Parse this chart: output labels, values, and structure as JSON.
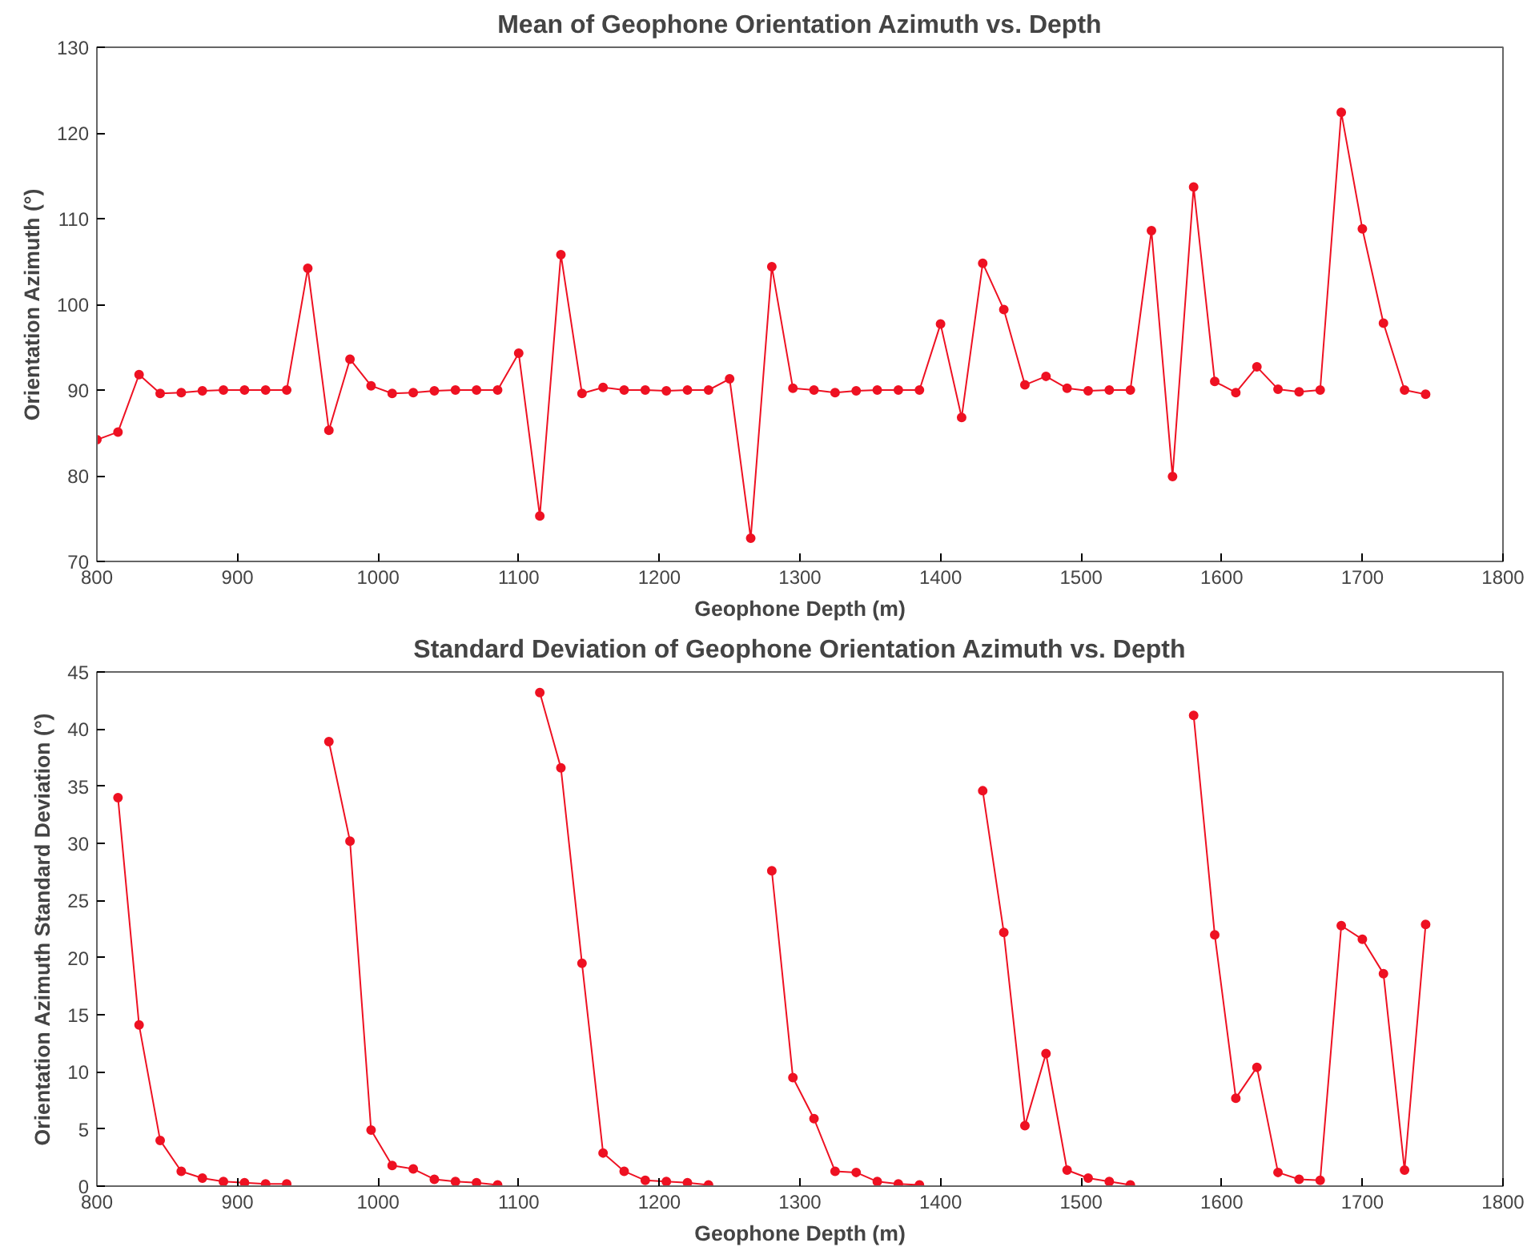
{
  "chart_data": [
    {
      "type": "line",
      "title": "Mean of Geophone Orientation Azimuth vs. Depth",
      "xlabel": "Geophone Depth (m)",
      "ylabel": "Orientation Azimuth (°)",
      "x": [
        800,
        815,
        830,
        845,
        860,
        875,
        890,
        905,
        920,
        935,
        950,
        965,
        980,
        995,
        1010,
        1025,
        1040,
        1055,
        1070,
        1085,
        1100,
        1115,
        1130,
        1145,
        1160,
        1175,
        1190,
        1205,
        1220,
        1235,
        1250,
        1265,
        1280,
        1295,
        1310,
        1325,
        1340,
        1355,
        1370,
        1385,
        1400,
        1415,
        1430,
        1445,
        1460,
        1475,
        1490,
        1505,
        1520,
        1535,
        1550,
        1565,
        1580,
        1595,
        1610,
        1625,
        1640,
        1655,
        1670,
        1685,
        1700,
        1715,
        1730,
        1745
      ],
      "series": [
        {
          "color": "#ee1122",
          "values": [
            84.2,
            85.1,
            91.8,
            89.6,
            89.7,
            89.9,
            90,
            90,
            90,
            90,
            104.2,
            85.3,
            93.6,
            90.5,
            89.6,
            89.7,
            89.9,
            90,
            90,
            90,
            94.3,
            75.3,
            105.8,
            89.6,
            90.3,
            90,
            90,
            89.9,
            90,
            90,
            91.3,
            72.7,
            104.4,
            90.2,
            90,
            89.7,
            89.9,
            90,
            90,
            90,
            97.7,
            86.8,
            104.8,
            99.4,
            90.6,
            91.6,
            90.2,
            89.9,
            90,
            90,
            108.6,
            79.9,
            113.7,
            91,
            89.7,
            92.7,
            90.1,
            89.8,
            90,
            122.4,
            108.8,
            97.8,
            90,
            89.5
          ]
        }
      ],
      "xlim": [
        800,
        1800
      ],
      "xticks": [
        800,
        900,
        1000,
        1100,
        1200,
        1300,
        1400,
        1500,
        1600,
        1700,
        1800
      ],
      "ylim": [
        70,
        130
      ],
      "yticks": [
        70,
        80,
        90,
        100,
        110,
        120,
        130
      ],
      "grid": false,
      "marker": "circle",
      "line_style": "solid"
    },
    {
      "type": "line",
      "title": "Standard Deviation of Geophone Orientation Azimuth vs. Depth",
      "xlabel": "Geophone Depth (m)",
      "ylabel": "Orientation Azimuth Standard Deviation (°)",
      "x": [
        815,
        830,
        845,
        860,
        875,
        890,
        905,
        920,
        935,
        950,
        965,
        980,
        995,
        1010,
        1025,
        1040,
        1055,
        1070,
        1085,
        1100,
        1115,
        1130,
        1145,
        1160,
        1175,
        1190,
        1205,
        1220,
        1235,
        1250,
        1265,
        1280,
        1295,
        1310,
        1325,
        1340,
        1355,
        1370,
        1385,
        1400,
        1415,
        1430,
        1445,
        1460,
        1475,
        1490,
        1505,
        1520,
        1535,
        1550,
        1565,
        1580,
        1595,
        1610,
        1625,
        1640,
        1655,
        1670,
        1685,
        1700,
        1715,
        1730,
        1745
      ],
      "series": [
        {
          "color": "#ee1122",
          "values": [
            34,
            14.1,
            4,
            1.3,
            0.7,
            0.4,
            0.3,
            0.2,
            0.2,
            null,
            38.9,
            30.2,
            4.9,
            1.8,
            1.5,
            0.6,
            0.4,
            0.3,
            0.1,
            null,
            43.2,
            36.6,
            19.5,
            2.9,
            1.3,
            0.5,
            0.4,
            0.3,
            0.1,
            null,
            null,
            27.6,
            9.5,
            5.9,
            1.3,
            1.2,
            0.4,
            0.2,
            0.1,
            null,
            null,
            34.6,
            22.2,
            5.3,
            11.6,
            1.4,
            0.7,
            0.4,
            0.1,
            null,
            null,
            41.2,
            22,
            7.7,
            10.4,
            1.2,
            0.6,
            0.5,
            22.8,
            21.6,
            18.6,
            1.4,
            22.9
          ]
        }
      ],
      "xlim": [
        800,
        1800
      ],
      "xticks": [
        800,
        900,
        1000,
        1100,
        1200,
        1300,
        1400,
        1500,
        1600,
        1700,
        1800
      ],
      "ylim": [
        0,
        45
      ],
      "yticks": [
        0,
        5,
        10,
        15,
        20,
        25,
        30,
        35,
        40,
        45
      ],
      "grid": false,
      "marker": "circle",
      "line_style": "solid"
    }
  ]
}
